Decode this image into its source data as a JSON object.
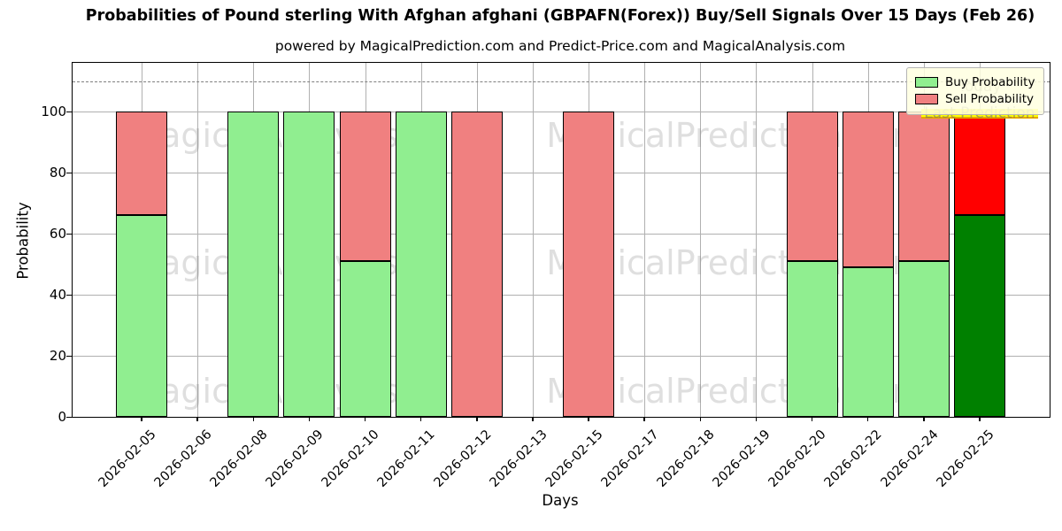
{
  "header": {
    "title": "Probabilities of Pound sterling With Afghan afghani (GBPAFN(Forex)) Buy/Sell Signals Over 15 Days (Feb 26)",
    "subtitle": "powered by MagicalPrediction.com and Predict-Price.com and MagicalAnalysis.com"
  },
  "watermarks": {
    "left_text": "MagicalAnalysis.com",
    "right_text": "MagicalPrediction.com",
    "today_text": "Today",
    "last_prediction_text": "Last Prediction"
  },
  "chart_data": {
    "type": "bar",
    "stacked": true,
    "title": "Probabilities of Pound sterling With Afghan afghani (GBPAFN(Forex)) Buy/Sell Signals Over 15 Days (Feb 26)",
    "xlabel": "Days",
    "ylabel": "Probability",
    "ylim": [
      0,
      116
    ],
    "yticks": [
      0,
      20,
      40,
      60,
      80,
      100
    ],
    "dashed_guide_y": 110,
    "grid": true,
    "legend_position": "upper right",
    "legend_bg_color": "#FFFFE0",
    "grid_color": "#B0B0B0",
    "categories": [
      "2026-02-05",
      "2026-02-06",
      "2026-02-08",
      "2026-02-09",
      "2026-02-10",
      "2026-02-11",
      "2026-02-12",
      "2026-02-13",
      "2026-02-15",
      "2026-02-17",
      "2026-02-18",
      "2026-02-19",
      "2026-02-20",
      "2026-02-22",
      "2026-02-24",
      "2026-02-25"
    ],
    "series": [
      {
        "name": "Buy Probability",
        "color": "#90EE90",
        "today_color": "#008000",
        "values": [
          66,
          null,
          100,
          100,
          51,
          100,
          0,
          null,
          0,
          null,
          null,
          null,
          51,
          49,
          51,
          66
        ]
      },
      {
        "name": "Sell Probability",
        "color": "#F08080",
        "today_color": "#FF0000",
        "values": [
          34,
          null,
          0,
          0,
          49,
          0,
          100,
          null,
          100,
          null,
          null,
          null,
          49,
          51,
          49,
          34
        ]
      }
    ],
    "today_index": 15,
    "today_highlight_color": "#FFFF00"
  }
}
